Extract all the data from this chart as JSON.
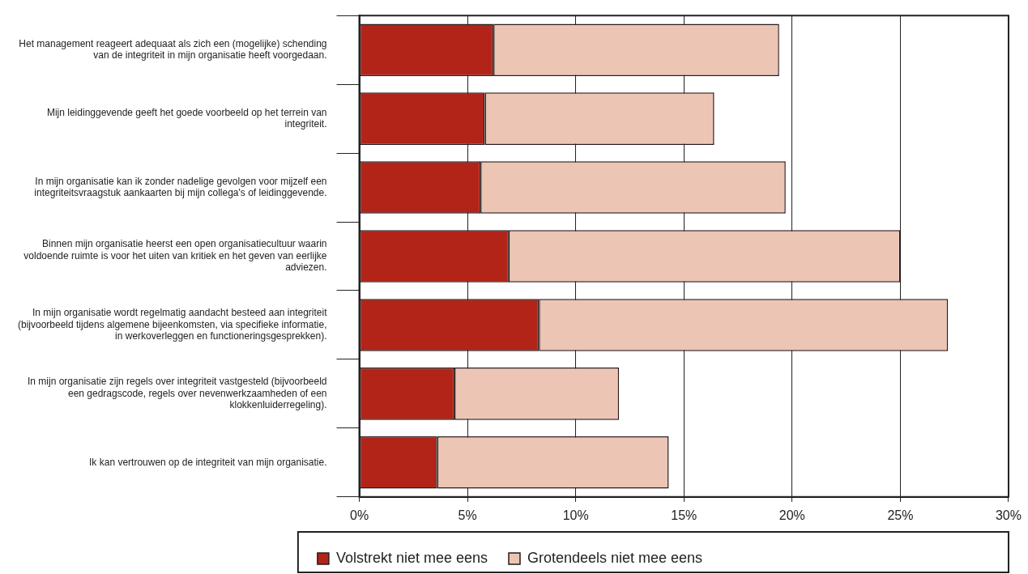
{
  "chart_data": {
    "type": "bar",
    "orientation": "horizontal",
    "stacked": true,
    "categories": [
      "Het management reageert adequaat als zich een (mogelijke) schending van de integriteit in mijn organisatie heeft voorgedaan.",
      "Mijn leidinggevende geeft het goede voorbeeld op het terrein van integriteit.",
      "In mijn organisatie kan ik zonder nadelige gevolgen voor mijzelf een integriteitsvraagstuk aankaarten bij mijn collega's of leidinggevende.",
      "Binnen mijn organisatie heerst een open organisatiecultuur waarin voldoende ruimte is voor het uiten van kritiek en het geven van eerlijke adviezen.",
      "In mijn organisatie wordt regelmatig aandacht besteed aan integriteit (bijvoorbeeld tijdens algemene bijeenkomsten, via specifieke informatie, in werkoverleggen en functioneringsgesprekken).",
      "In mijn organisatie zijn regels over integriteit vastgesteld (bijvoorbeeld een gedragscode, regels over nevenwerkzaamheden of een klokkenluiderregeling).",
      "Ik kan vertrouwen op de integriteit van mijn organisatie."
    ],
    "series": [
      {
        "name": "Volstrekt niet mee eens",
        "color": "#b22418",
        "values": [
          6.2,
          5.8,
          5.6,
          6.9,
          8.3,
          4.4,
          3.6
        ]
      },
      {
        "name": "Grotendeels niet mee eens",
        "color": "#edc5b5",
        "values": [
          13.2,
          10.6,
          14.1,
          18.1,
          18.9,
          7.6,
          10.7
        ]
      }
    ],
    "xlim": [
      0,
      30
    ],
    "xticks": [
      {
        "value": 0,
        "label": "0%"
      },
      {
        "value": 5,
        "label": "5%"
      },
      {
        "value": 10,
        "label": "10%"
      },
      {
        "value": 15,
        "label": "15%"
      },
      {
        "value": 20,
        "label": "20%"
      },
      {
        "value": 25,
        "label": "25%"
      },
      {
        "value": 30,
        "label": "30%"
      }
    ],
    "grid": "x",
    "legend": "bottom"
  }
}
